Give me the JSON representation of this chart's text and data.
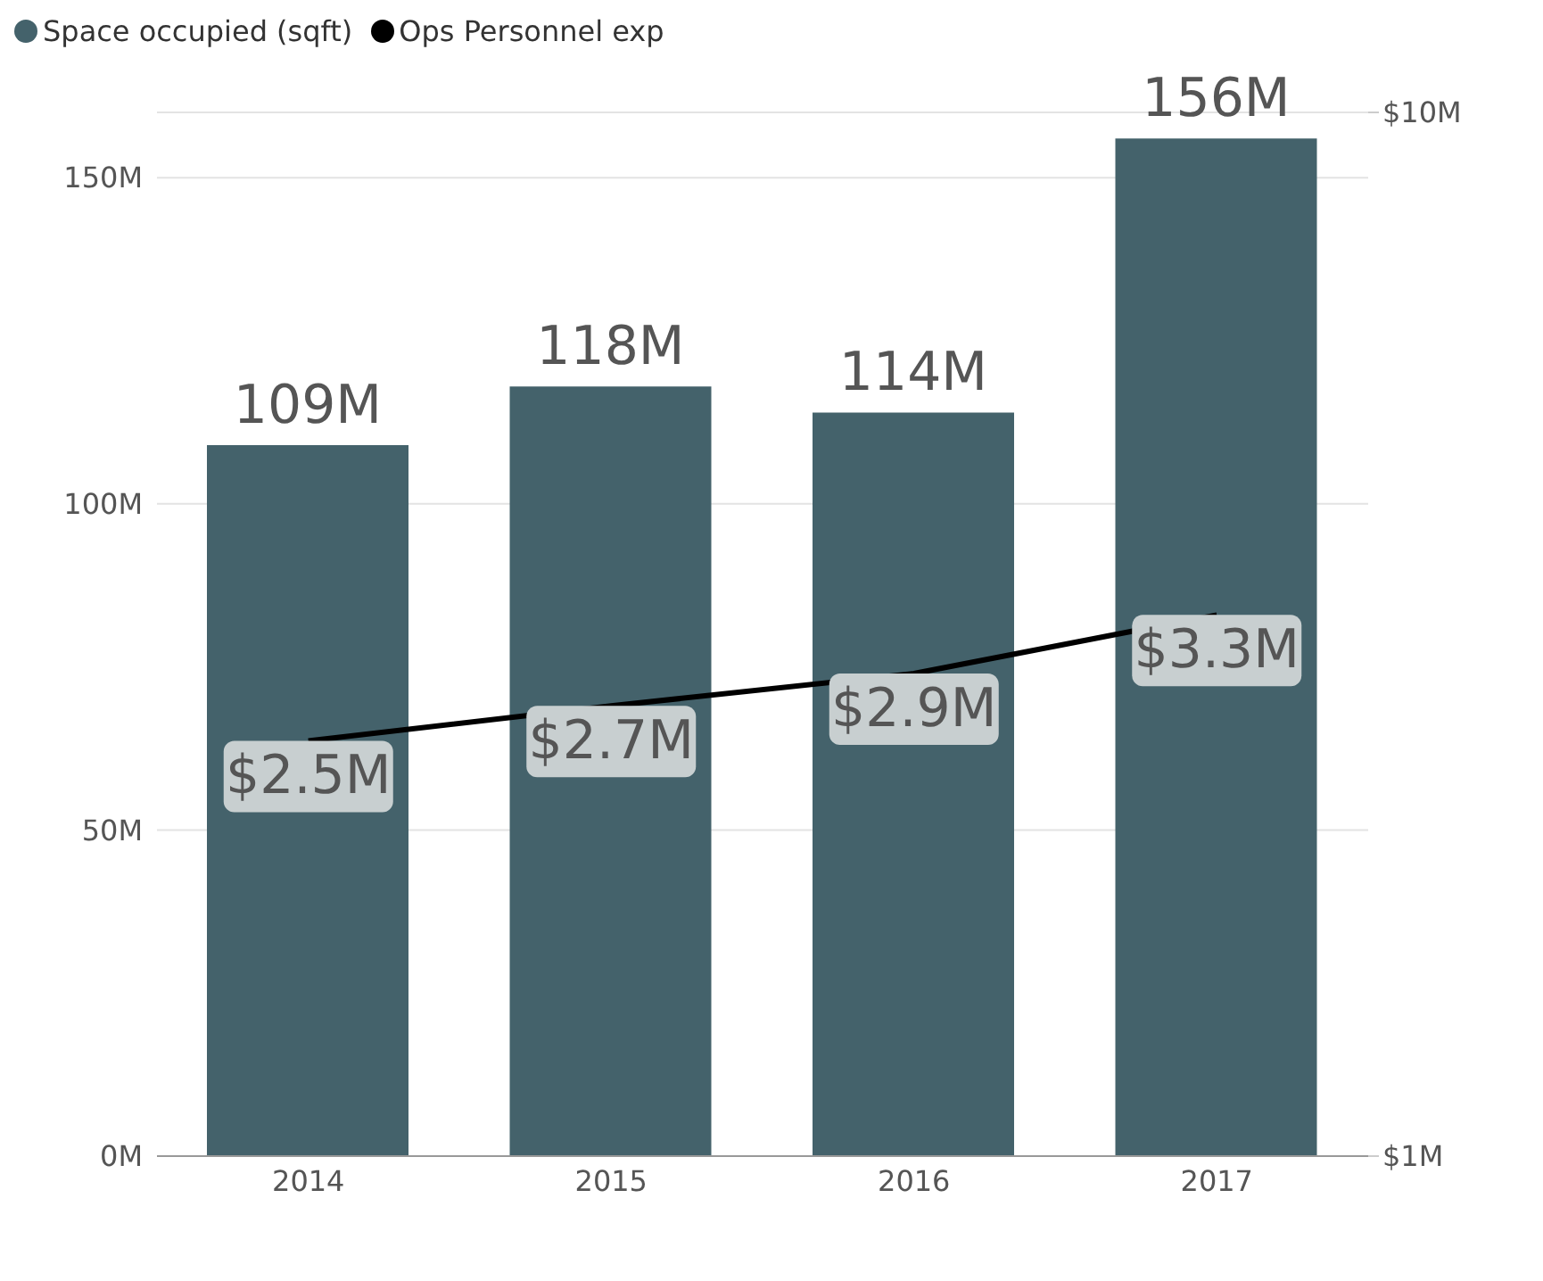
{
  "chart_data": {
    "type": "bar",
    "categories": [
      "2014",
      "2015",
      "2016",
      "2017"
    ],
    "series": [
      {
        "name": "Space occupied (sqft)",
        "color": "#44626b",
        "values": [
          109,
          118,
          114,
          156
        ],
        "value_labels": [
          "109M",
          "118M",
          "114M",
          "156M"
        ]
      },
      {
        "name": "Ops Personnel exp",
        "type": "line",
        "axis": "y2",
        "color": "#000000",
        "values": [
          2.5,
          2.7,
          2.9,
          3.3
        ],
        "value_labels": [
          "$2.5M",
          "$2.7M",
          "$2.9M",
          "$3.3M"
        ]
      }
    ],
    "ylim": [
      0,
      160
    ],
    "yticks": [
      {
        "value": 0,
        "label": "0M"
      },
      {
        "value": 50,
        "label": "50M"
      },
      {
        "value": 100,
        "label": "100M"
      },
      {
        "value": 150,
        "label": "150M"
      }
    ],
    "y2lim": [
      1,
      10
    ],
    "y2ticks": [
      {
        "value": 1,
        "label": "$1M"
      },
      {
        "value": 10,
        "label": "$10M"
      }
    ],
    "log": "y2",
    "grid": "y",
    "legend": "top left",
    "marker": "none",
    "line_style": "solid"
  }
}
